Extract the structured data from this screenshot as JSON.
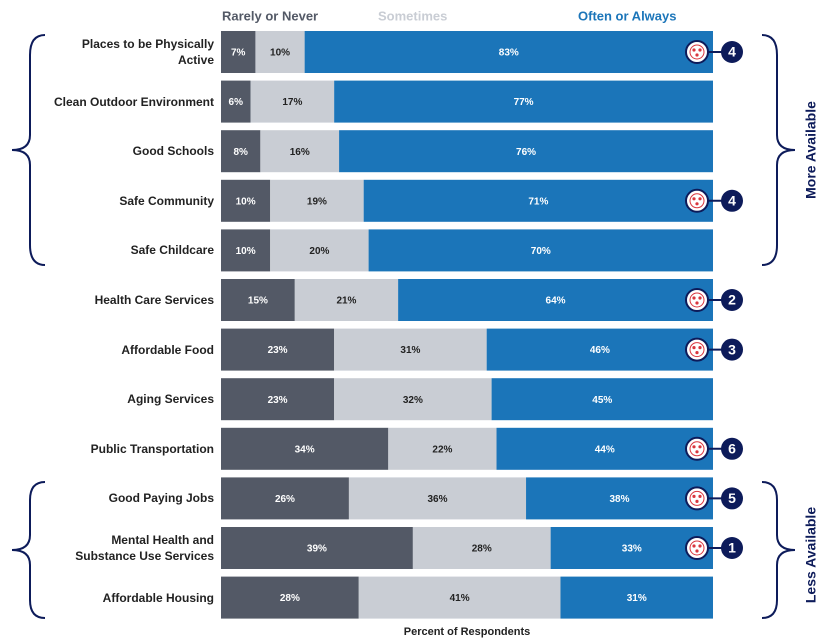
{
  "chart_data": {
    "type": "stacked-bar-horizontal",
    "x_label": "Percent of Respondents",
    "categories": [
      "Places to be Physically Active",
      "Clean Outdoor Environment",
      "Good Schools",
      "Safe Community",
      "Safe Childcare",
      "Health Care Services",
      "Affordable Food",
      "Aging Services",
      "Public Transportation",
      "Good Paying Jobs",
      "Mental Health and Substance Use Services",
      "Affordable Housing"
    ],
    "series": [
      {
        "name": "Rarely or Never",
        "color": "#535966",
        "label_color": "#ffffff",
        "values": [
          7,
          6,
          8,
          10,
          10,
          15,
          23,
          23,
          34,
          26,
          39,
          28
        ],
        "value_labels": [
          "7%",
          "6%",
          "8%",
          "10%",
          "10%",
          "15%",
          "23%",
          "23%",
          "34%",
          "26%",
          "39%",
          "28%"
        ]
      },
      {
        "name": "Sometimes",
        "color": "#c9cdd4",
        "label_color": "#222222",
        "values": [
          10,
          17,
          16,
          19,
          20,
          21,
          31,
          32,
          22,
          36,
          28,
          41
        ],
        "value_labels": [
          "10%",
          "17%",
          "16%",
          "19%",
          "20%",
          "21%",
          "31%",
          "32%",
          "22%",
          "36%",
          "28%",
          "41%"
        ]
      },
      {
        "name": "Often or Always",
        "color": "#1b75b9",
        "label_color": "#ffffff",
        "values": [
          83,
          77,
          76,
          71,
          70,
          64,
          46,
          45,
          44,
          38,
          33,
          31
        ],
        "value_labels": [
          "83%",
          "77%",
          "76%",
          "71%",
          "70%",
          "64%",
          "46%",
          "45%",
          "44%",
          "38%",
          "33%",
          "31%"
        ]
      }
    ],
    "ranks": [
      4,
      null,
      null,
      4,
      null,
      2,
      3,
      null,
      6,
      5,
      1,
      null
    ],
    "group_labels": [
      "More Available",
      "Less Available"
    ],
    "xlim": [
      0,
      100
    ]
  }
}
